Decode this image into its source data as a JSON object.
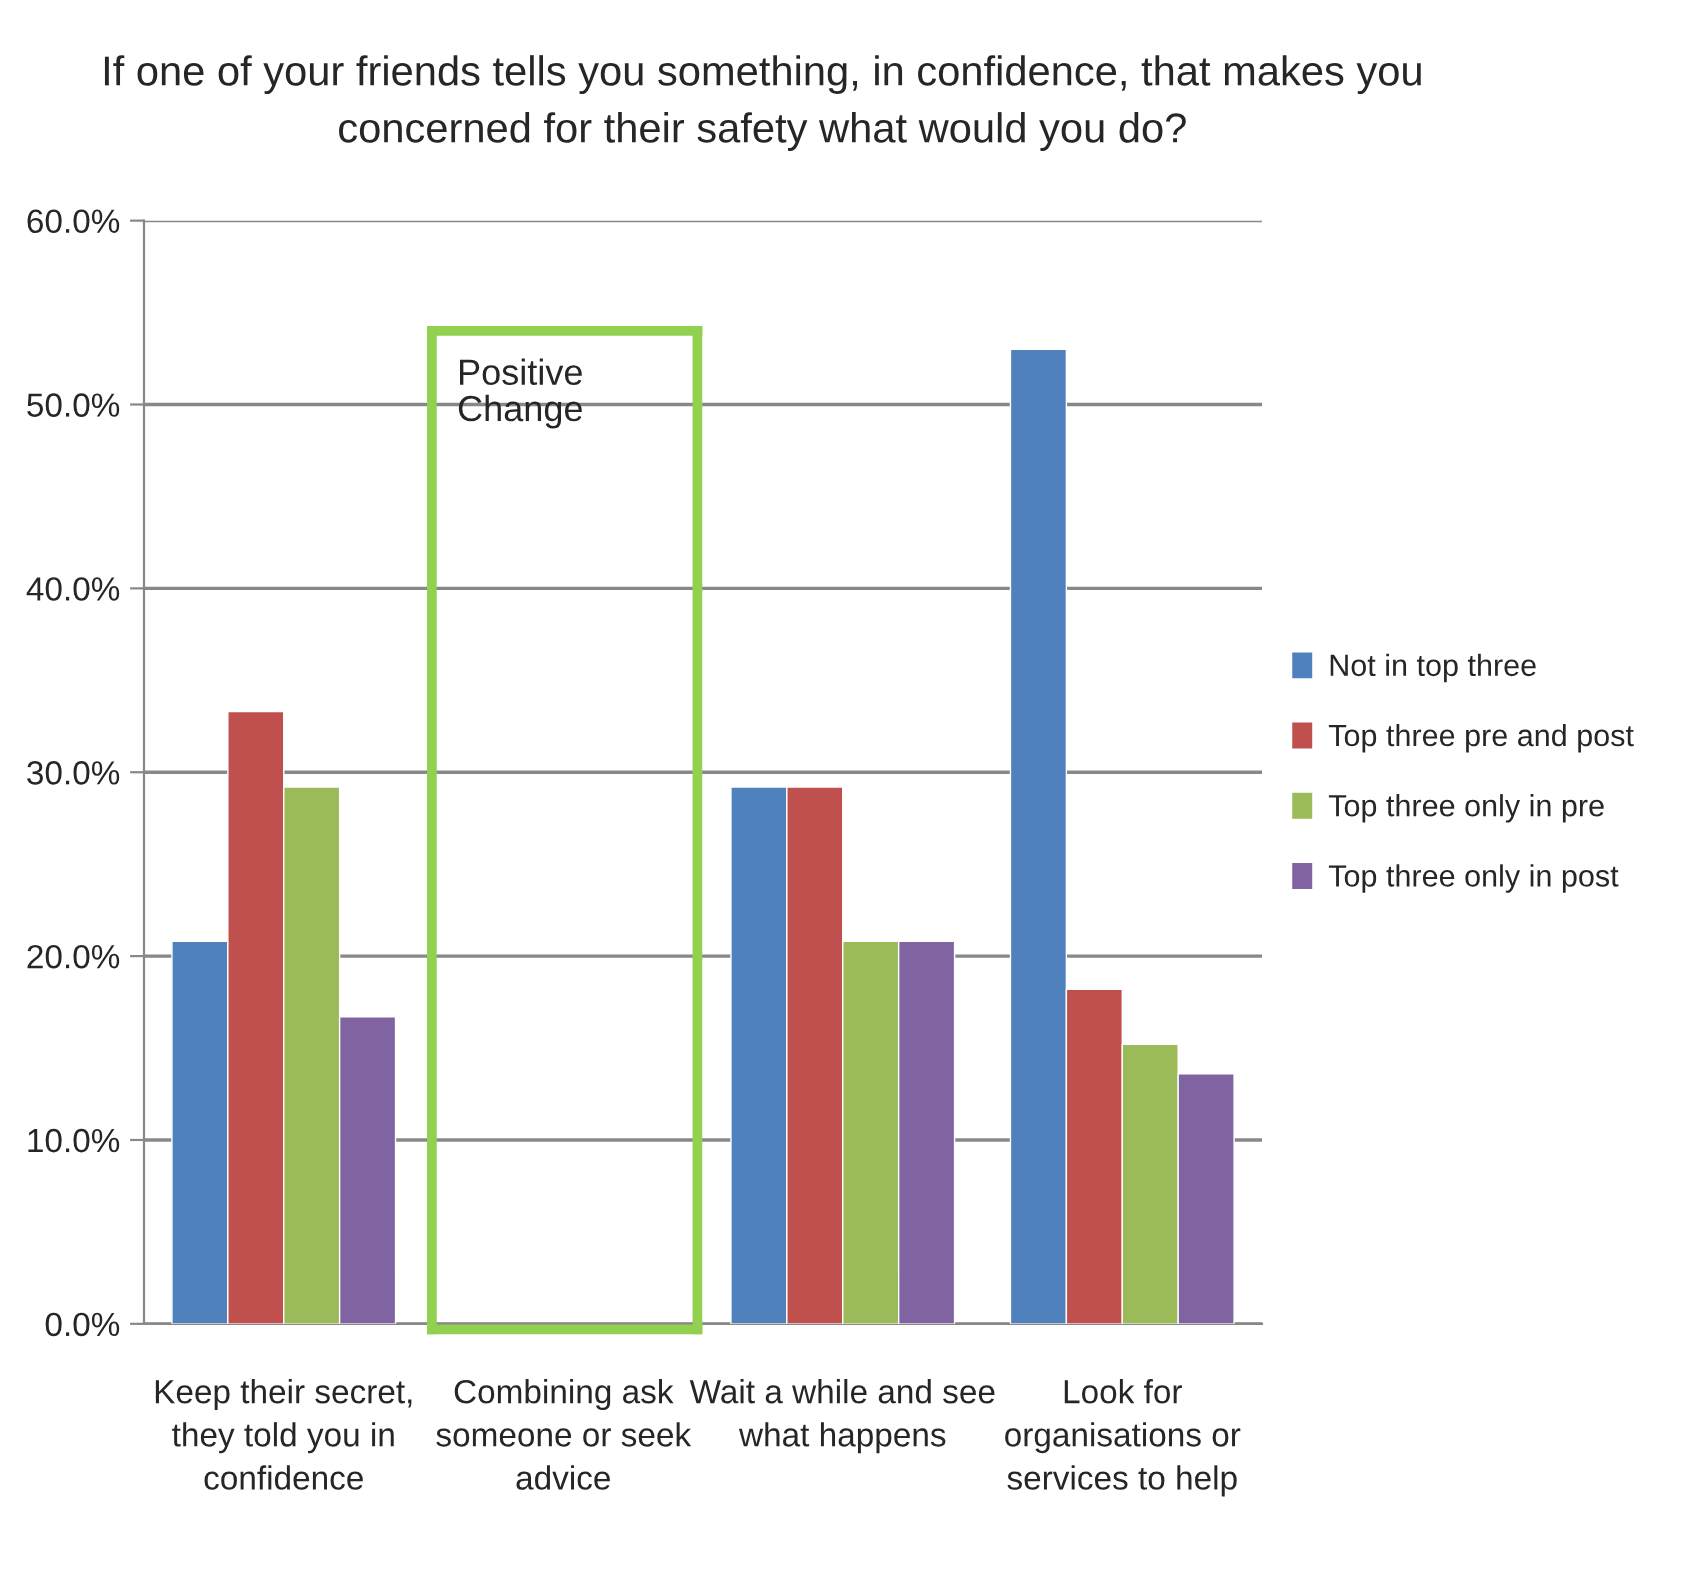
{
  "chart_data": {
    "type": "bar",
    "title": "If one of your friends tells you something, in confidence, that makes you concerned for their safety what would you do?",
    "categories": [
      "Keep their secret, they told you in confidence",
      "Combining ask someone or seek advice",
      "Wait a while and see what happens",
      "Look for organisations or services to help"
    ],
    "series": [
      {
        "name": "Not in top three",
        "color": "#4f81bd",
        "values": [
          20.8,
          null,
          29.2,
          53.0
        ]
      },
      {
        "name": "Top three pre and post",
        "color": "#c0504d",
        "values": [
          33.3,
          null,
          29.2,
          18.2
        ]
      },
      {
        "name": "Top three only in pre",
        "color": "#9bbb59",
        "values": [
          29.2,
          null,
          20.8,
          15.2
        ]
      },
      {
        "name": "Top three only in post",
        "color": "#8064a2",
        "values": [
          16.7,
          null,
          20.8,
          13.6
        ]
      }
    ],
    "ylim": [
      0,
      60
    ],
    "yticks": [
      {
        "value": 0,
        "label": "0.0%"
      },
      {
        "value": 10,
        "label": "10.0%"
      },
      {
        "value": 20,
        "label": "20.0%"
      },
      {
        "value": 30,
        "label": "30.0%"
      },
      {
        "value": 40,
        "label": "40.0%"
      },
      {
        "value": 50,
        "label": "50.0%"
      },
      {
        "value": 60,
        "label": "60.0%"
      }
    ],
    "grid": "y",
    "legend": "right",
    "annotations": [
      "Positive Change"
    ]
  }
}
